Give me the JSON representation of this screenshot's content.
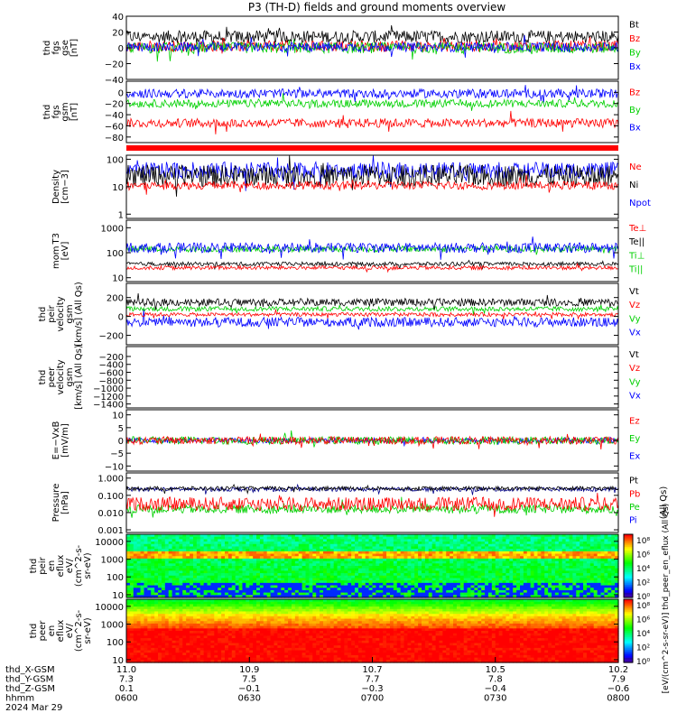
{
  "title": "P3 (TH-D) fields and ground moments overview",
  "colors": {
    "black": "#000000",
    "red": "#ff0000",
    "green": "#00d000",
    "blue": "#0000ff",
    "dblue": "#00008b",
    "orange": "#ff8000"
  },
  "chart_data": [
    {
      "id": "fgs-gse",
      "type": "line",
      "ylabel": [
        "thd",
        "fgs",
        "gse",
        "[nT]"
      ],
      "ylim": [
        -40,
        40
      ],
      "yticks": [
        {
          "v": 40,
          "t": "40"
        },
        {
          "v": 20,
          "t": "20"
        },
        {
          "v": 0,
          "t": "0"
        },
        {
          "v": -20,
          "t": "−20"
        },
        {
          "v": -40,
          "t": "−40"
        }
      ],
      "legend": [
        {
          "t": "Bt",
          "c": "black"
        },
        {
          "t": "Bz",
          "c": "red"
        },
        {
          "t": "By",
          "c": "green"
        },
        {
          "t": "Bx",
          "c": "blue"
        }
      ],
      "series": [
        {
          "name": "Bt",
          "c": "black",
          "base": 14,
          "amp": 8
        },
        {
          "name": "Bz",
          "c": "red",
          "base": 2,
          "amp": 7
        },
        {
          "name": "By",
          "c": "green",
          "base": 0,
          "amp": 7
        },
        {
          "name": "Bx",
          "c": "blue",
          "base": 1,
          "amp": 6
        }
      ]
    },
    {
      "id": "fgs-gsm",
      "type": "line",
      "ylabel": [
        "thd",
        "fgs",
        "gsm",
        "[nT]"
      ],
      "ylim": [
        -90,
        20
      ],
      "yticks": [
        {
          "v": 0,
          "t": "0"
        },
        {
          "v": -20,
          "t": "−20"
        },
        {
          "v": -40,
          "t": "−40"
        },
        {
          "v": -60,
          "t": "−60"
        },
        {
          "v": -80,
          "t": "−80"
        }
      ],
      "legend": [
        {
          "t": "Bz",
          "c": "red"
        },
        {
          "t": "By",
          "c": "green"
        },
        {
          "t": "Bx",
          "c": "blue"
        }
      ],
      "series": [
        {
          "name": "Bx",
          "c": "blue",
          "base": -2,
          "amp": 8
        },
        {
          "name": "By",
          "c": "green",
          "base": -20,
          "amp": 7
        },
        {
          "name": "Bz",
          "c": "red",
          "base": -55,
          "amp": 8
        }
      ]
    },
    {
      "id": "density",
      "type": "line",
      "log": true,
      "ylabel": [
        "Density",
        "[cm−3]"
      ],
      "ylim": [
        0.7,
        140
      ],
      "yticks": [
        {
          "v": 100,
          "t": "100"
        },
        {
          "v": 10,
          "t": "10"
        },
        {
          "v": 1,
          "t": "1"
        }
      ],
      "legend": [
        {
          "t": "Ne",
          "c": "red"
        },
        {
          "t": "Ni",
          "c": "black"
        },
        {
          "t": "Npot",
          "c": "blue"
        }
      ],
      "series": [
        {
          "name": "Npot",
          "c": "blue",
          "base": 1.6,
          "amp": 0.3
        },
        {
          "name": "Ni",
          "c": "black",
          "base": 1.4,
          "amp": 0.4
        },
        {
          "name": "Ne",
          "c": "red",
          "base": 1.05,
          "amp": 0.15
        }
      ]
    },
    {
      "id": "temp",
      "type": "line",
      "log": true,
      "ylabel": [
        "mom T3",
        "[eV]"
      ],
      "ylim": [
        7,
        2000
      ],
      "yticks": [
        {
          "v": 1000,
          "t": "1000"
        },
        {
          "v": 100,
          "t": "100"
        },
        {
          "v": 10,
          "t": "10"
        }
      ],
      "legend": [
        {
          "t": "Te⊥",
          "c": "red"
        },
        {
          "t": "Te||",
          "c": "black"
        },
        {
          "t": "Ti⊥",
          "c": "green"
        },
        {
          "t": "Ti||",
          "c": "green"
        }
      ],
      "series": [
        {
          "name": "Ti||",
          "c": "green",
          "base": 2.15,
          "amp": 0.12
        },
        {
          "name": "Ti⊥",
          "c": "blue",
          "base": 2.2,
          "amp": 0.2
        },
        {
          "name": "Te||",
          "c": "black",
          "base": 1.55,
          "amp": 0.08
        },
        {
          "name": "Te⊥",
          "c": "red",
          "base": 1.4,
          "amp": 0.08
        }
      ]
    },
    {
      "id": "pei-vel",
      "type": "line",
      "ylabel": [
        "thd",
        "peir",
        "velocity",
        "gsm",
        "[km/s] (All Qs)"
      ],
      "ylim": [
        -300,
        350
      ],
      "yticks": [
        {
          "v": 200,
          "t": "200"
        },
        {
          "v": 0,
          "t": "0"
        },
        {
          "v": -200,
          "t": "−200"
        }
      ],
      "legend": [
        {
          "t": "Vt",
          "c": "black"
        },
        {
          "t": "Vz",
          "c": "red"
        },
        {
          "t": "Vy",
          "c": "green"
        },
        {
          "t": "Vx",
          "c": "blue"
        }
      ],
      "series": [
        {
          "name": "Vx",
          "c": "blue",
          "base": -60,
          "amp": 50
        },
        {
          "name": "Vy",
          "c": "green",
          "base": 80,
          "amp": 25
        },
        {
          "name": "Vz",
          "c": "red",
          "base": 20,
          "amp": 20
        },
        {
          "name": "Vt",
          "c": "black",
          "base": 150,
          "amp": 40
        }
      ]
    },
    {
      "id": "pee-vel",
      "type": "empty",
      "ylabel": [
        "thd",
        "peer",
        "velocity",
        "gsm",
        "[km/s] (All Qs)"
      ],
      "ylim": [
        -1500,
        50
      ],
      "yticks": [
        {
          "v": -200,
          "t": "−200"
        },
        {
          "v": -400,
          "t": "−400"
        },
        {
          "v": -600,
          "t": "−600"
        },
        {
          "v": -800,
          "t": "−800"
        },
        {
          "v": -1000,
          "t": "−1000"
        },
        {
          "v": -1200,
          "t": "−1200"
        },
        {
          "v": -1400,
          "t": "−1400"
        }
      ],
      "legend": [
        {
          "t": "Vt",
          "c": "black"
        },
        {
          "t": "Vz",
          "c": "red"
        },
        {
          "t": "Vy",
          "c": "green"
        },
        {
          "t": "Vx",
          "c": "blue"
        }
      ],
      "series": []
    },
    {
      "id": "efield",
      "type": "line",
      "ylabel": [
        "E=−VxB",
        "[mV/m]"
      ],
      "ylim": [
        -12,
        12
      ],
      "yticks": [
        {
          "v": 10,
          "t": "10"
        },
        {
          "v": 5,
          "t": "5"
        },
        {
          "v": 0,
          "t": "0"
        },
        {
          "v": -5,
          "t": "−5"
        },
        {
          "v": -10,
          "t": "−10"
        }
      ],
      "legend": [
        {
          "t": "Ez",
          "c": "red"
        },
        {
          "t": "Ey",
          "c": "green"
        },
        {
          "t": "Ex",
          "c": "blue"
        }
      ],
      "series": [
        {
          "name": "Ex",
          "c": "blue",
          "base": 0,
          "amp": 1
        },
        {
          "name": "Ey",
          "c": "green",
          "base": 0,
          "amp": 1.5
        },
        {
          "name": "Ez",
          "c": "red",
          "base": 0,
          "amp": 1.5
        }
      ]
    },
    {
      "id": "pressure",
      "type": "line",
      "log": true,
      "ylabel": [
        "Pressure",
        "[nPa]"
      ],
      "ylim": [
        0.0007,
        2
      ],
      "yticks": [
        {
          "v": 1,
          "t": "1.000"
        },
        {
          "v": 0.1,
          "t": "0.100"
        },
        {
          "v": 0.01,
          "t": "0.010"
        },
        {
          "v": 0.001,
          "t": "0.001"
        }
      ],
      "legend": [
        {
          "t": "Pt",
          "c": "black"
        },
        {
          "t": "Pb",
          "c": "red"
        },
        {
          "t": "Pe",
          "c": "green"
        },
        {
          "t": "Pi",
          "c": "blue"
        }
      ],
      "legend_right_label": "(All Qs)",
      "series": [
        {
          "name": "Pi",
          "c": "dblue",
          "base": -0.65,
          "amp": 0.12
        },
        {
          "name": "Pt",
          "c": "black",
          "base": -0.6,
          "amp": 0.12
        },
        {
          "name": "Pe",
          "c": "green",
          "base": -1.8,
          "amp": 0.25
        },
        {
          "name": "Pb",
          "c": "red",
          "base": -1.5,
          "amp": 0.4
        }
      ]
    },
    {
      "id": "peir-spec",
      "type": "heatmap",
      "log": true,
      "ylabel": [
        "thd",
        "peir",
        "en",
        "eflux",
        "eV/",
        "(cm^2-s-",
        "sr-eV)"
      ],
      "ylim": [
        7,
        25000
      ],
      "yticks": [
        {
          "v": 10000,
          "t": "10000"
        },
        {
          "v": 1000,
          "t": "1000"
        },
        {
          "v": 100,
          "t": "100"
        },
        {
          "v": 10,
          "t": "10"
        }
      ]
    },
    {
      "id": "peer-spec",
      "type": "heatmap",
      "log": true,
      "ylabel": [
        "thd",
        "peer",
        "en",
        "eflux",
        "eV/",
        "(cm^2-s-",
        "sr-eV)"
      ],
      "ylim": [
        7,
        25000
      ],
      "yticks": [
        {
          "v": 10000,
          "t": "10000"
        },
        {
          "v": 1000,
          "t": "1000"
        },
        {
          "v": 100,
          "t": "100"
        },
        {
          "v": 10,
          "t": "10"
        }
      ]
    }
  ],
  "colorbars": [
    {
      "labels": [
        "10⁸",
        "10⁶",
        "10⁴",
        "10²",
        "10⁰"
      ]
    },
    {
      "labels": [
        "10⁸",
        "10⁶",
        "10⁴",
        "10²",
        "10⁰"
      ]
    }
  ],
  "colorbar_label": "[eV/(cm^2-s-sr-eV)] thd_peer_en_eflux (All Qs)",
  "x_axis": {
    "row_labels": [
      "thd_X-GSM",
      "thd_Y-GSM",
      "thd_Z-GSM",
      "hhmm",
      "2024 Mar 29"
    ],
    "ticks": [
      {
        "x": [
          "11.0",
          "7.3",
          "0.1",
          "0600"
        ]
      },
      {
        "x": [
          "10.9",
          "7.5",
          "−0.1",
          "0630"
        ]
      },
      {
        "x": [
          "10.7",
          "7.7",
          "−0.3",
          "0700"
        ]
      },
      {
        "x": [
          "10.5",
          "7.8",
          "−0.4",
          "0730"
        ]
      },
      {
        "x": [
          "10.2",
          "7.9",
          "−0.6",
          "0800"
        ]
      }
    ]
  }
}
